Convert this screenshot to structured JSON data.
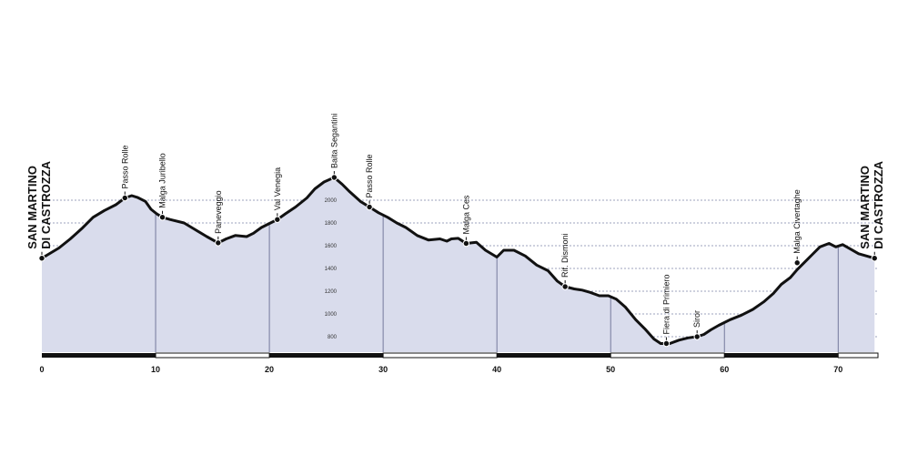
{
  "chart_data": {
    "type": "area",
    "title": "",
    "xlabel": "",
    "ylabel": "",
    "xlim": [
      0,
      73.5
    ],
    "ylim": [
      700,
      2250
    ],
    "x_ticks": [
      0,
      10,
      20,
      30,
      40,
      50,
      60,
      70
    ],
    "y_ticks": [
      800,
      1000,
      1200,
      1400,
      1600,
      1800,
      2000
    ],
    "grid": true,
    "series": [
      {
        "x": [
          0,
          0.5,
          1.5,
          2.5,
          3.5,
          4.5,
          5.5,
          6.5,
          7.3,
          7.9,
          8.4,
          9.1,
          9.6,
          10.1,
          10.6,
          11.3,
          12.5,
          13.5,
          14.5,
          15.5,
          16.2,
          17.0,
          18.0,
          18.6,
          19.3,
          20.1,
          20.7,
          21.4,
          22.3,
          23.3,
          24.0,
          24.8,
          25.7,
          26.4,
          27.0,
          28.0,
          28.8,
          29.6,
          30.4,
          31.2,
          32.0,
          33.0,
          34.0,
          35.0,
          35.6,
          36.0,
          36.6,
          37.3,
          38.2,
          39.0,
          40.0,
          40.6,
          41.5,
          42.5,
          43.5,
          44.5,
          45.3,
          46.0,
          46.8,
          47.5,
          48.2,
          49.0,
          49.8,
          50.5,
          51.3,
          52.2,
          53.0,
          53.8,
          54.4,
          55.2,
          56.0,
          56.8,
          57.6,
          58.2,
          58.8,
          59.5,
          60.5,
          61.5,
          62.5,
          63.5,
          64.3,
          65.0,
          65.8,
          66.4,
          67.0,
          67.7,
          68.4,
          69.2,
          69.8,
          70.4,
          71.1,
          71.8,
          72.5,
          73.2
        ],
        "y": [
          1490,
          1520,
          1580,
          1660,
          1750,
          1850,
          1910,
          1960,
          2020,
          2040,
          2025,
          1990,
          1920,
          1880,
          1850,
          1830,
          1800,
          1740,
          1680,
          1625,
          1660,
          1690,
          1680,
          1710,
          1760,
          1800,
          1830,
          1880,
          1940,
          2020,
          2100,
          2160,
          2200,
          2140,
          2080,
          1990,
          1940,
          1890,
          1850,
          1800,
          1760,
          1690,
          1650,
          1660,
          1640,
          1660,
          1665,
          1620,
          1630,
          1560,
          1500,
          1560,
          1560,
          1510,
          1430,
          1380,
          1290,
          1240,
          1220,
          1210,
          1190,
          1160,
          1160,
          1130,
          1060,
          950,
          870,
          780,
          740,
          740,
          770,
          790,
          800,
          820,
          860,
          900,
          950,
          990,
          1040,
          1110,
          1180,
          1260,
          1320,
          1390,
          1450,
          1520,
          1590,
          1620,
          1590,
          1610,
          1570,
          1530,
          1510,
          1490
        ]
      }
    ],
    "waypoints": [
      {
        "name": "Passo Rolle",
        "x": 7.3,
        "y": 2020
      },
      {
        "name": "Malga Juribello",
        "x": 10.6,
        "y": 1850
      },
      {
        "name": "Paneveggio",
        "x": 15.5,
        "y": 1625
      },
      {
        "name": "Val Venegia",
        "x": 20.7,
        "y": 1830
      },
      {
        "name": "Baita Segantini",
        "x": 25.7,
        "y": 2200
      },
      {
        "name": "Passo Rolle",
        "x": 28.8,
        "y": 1940
      },
      {
        "name": "Malga Ces",
        "x": 37.3,
        "y": 1620
      },
      {
        "name": "Rif. Dismoni",
        "x": 46.0,
        "y": 1240
      },
      {
        "name": "Fiera di Primiero",
        "x": 54.9,
        "y": 740
      },
      {
        "name": "Siror",
        "x": 57.6,
        "y": 800
      },
      {
        "name": "Malga Civertaghe",
        "x": 66.4,
        "y": 1450
      }
    ],
    "start_label": [
      "SAN MARTINO",
      "DI CASTROZZA"
    ],
    "end_label": [
      "SAN MARTINO",
      "DI CASTROZZA"
    ],
    "distance_segments": [
      {
        "from": 0,
        "to": 10,
        "fill": "black"
      },
      {
        "from": 10,
        "to": 20,
        "fill": "white"
      },
      {
        "from": 20,
        "to": 30,
        "fill": "black"
      },
      {
        "from": 30,
        "to": 40,
        "fill": "white"
      },
      {
        "from": 40,
        "to": 50,
        "fill": "black"
      },
      {
        "from": 50,
        "to": 60,
        "fill": "white"
      },
      {
        "from": 60,
        "to": 70,
        "fill": "black"
      },
      {
        "from": 70,
        "to": 73.5,
        "fill": "white"
      }
    ]
  },
  "colors": {
    "area_fill": "#d9dcec",
    "line": "#111111",
    "grid": "#7f85a8"
  }
}
